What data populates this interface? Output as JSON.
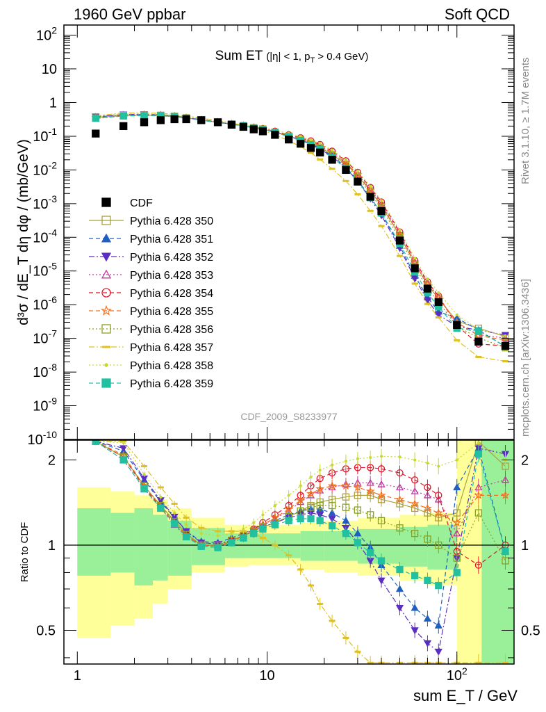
{
  "header": {
    "left": "1960 GeV ppbar",
    "right": "Soft QCD",
    "side_top": "Rivet 3.1.10, ≥ 1.7M events",
    "side_bottom": "mcplots.cern.ch [arXiv:1306.3436]"
  },
  "plot_title": {
    "main": "Sum ET",
    "cut": "(|η| < 1, p",
    "cut_sub": "T",
    "cut_end": " > 0.4 GeV)"
  },
  "analysis_label": "CDF_2009_S8233977",
  "axes": {
    "ylabel_top": "d³σ / dE_T dη dφ / (mb/GeV)",
    "ylabel_ratio": "Ratio to CDF",
    "xlabel": "sum E_T / GeV",
    "x_ticks": [
      "1",
      "10",
      "10²"
    ],
    "y_ticks_top": [
      "10²",
      "10",
      "1",
      "10⁻¹",
      "10⁻²",
      "10⁻³",
      "10⁻⁴",
      "10⁻⁵",
      "10⁻⁶",
      "10⁻⁷",
      "10⁻⁸",
      "10⁻⁹",
      "10⁻¹⁰"
    ],
    "y_ticks_ratio": [
      "2",
      "1",
      "0.5"
    ]
  },
  "legend": [
    {
      "label": "CDF",
      "color": "#000000",
      "marker": "filled-square",
      "line": "none"
    },
    {
      "label": "Pythia 6.428 350",
      "color": "#aaa13b",
      "marker": "open-square",
      "line": "solid"
    },
    {
      "label": "Pythia 6.428 351",
      "color": "#1f5fbf",
      "marker": "filled-triangle-up",
      "line": "dashed"
    },
    {
      "label": "Pythia 6.428 352",
      "color": "#5a2ec0",
      "marker": "filled-triangle-down",
      "line": "dashdot"
    },
    {
      "label": "Pythia 6.428 353",
      "color": "#c03aa0",
      "marker": "open-triangle-up",
      "line": "dotted"
    },
    {
      "label": "Pythia 6.428 354",
      "color": "#e0152a",
      "marker": "open-circle",
      "line": "dashed"
    },
    {
      "label": "Pythia 6.428 355",
      "color": "#f07020",
      "marker": "open-star",
      "line": "dashed"
    },
    {
      "label": "Pythia 6.428 356",
      "color": "#8aa020",
      "marker": "open-square",
      "line": "dotted"
    },
    {
      "label": "Pythia 6.428 357",
      "color": "#e0c020",
      "marker": "dash",
      "line": "dashdot"
    },
    {
      "label": "Pythia 6.428 358",
      "color": "#c8d830",
      "marker": "dot",
      "line": "dotted"
    },
    {
      "label": "Pythia 6.428 359",
      "color": "#20c0a0",
      "marker": "filled-square",
      "line": "dashed"
    }
  ],
  "chart_data": {
    "type": "scatter",
    "xscale": "log",
    "xlim": [
      0.85,
      200
    ],
    "ylim_top": [
      1e-10,
      200
    ],
    "yscale_top": "log",
    "ylim_ratio": [
      0.38,
      2.35
    ],
    "yscale_ratio": "log",
    "data": {
      "name": "CDF",
      "x": [
        1.25,
        1.75,
        2.25,
        2.75,
        3.25,
        3.75,
        4.5,
        5.5,
        6.5,
        7.5,
        8.5,
        9.5,
        11,
        13,
        15,
        17,
        19,
        22,
        26,
        30,
        35,
        40,
        50,
        60,
        70,
        80,
        100,
        130,
        180
      ],
      "y": [
        0.12,
        0.2,
        0.26,
        0.3,
        0.32,
        0.32,
        0.3,
        0.26,
        0.22,
        0.19,
        0.16,
        0.14,
        0.11,
        0.08,
        0.06,
        0.045,
        0.033,
        0.02,
        0.01,
        0.0045,
        0.0016,
        0.0006,
        8e-05,
        1.2e-05,
        3e-06,
        1.2e-06,
        2.5e-07,
        8e-08,
        6e-08
      ]
    },
    "mc_band_1sigma": {
      "x": [
        1,
        1.5,
        2,
        2.5,
        3,
        4,
        6,
        8,
        10,
        15,
        20,
        30,
        50,
        70,
        100
      ],
      "lo": [
        0.78,
        0.8,
        0.72,
        0.75,
        0.78,
        0.85,
        0.9,
        0.9,
        0.9,
        0.88,
        0.88,
        0.86,
        0.84,
        0.82,
        0.8
      ],
      "hi": [
        1.35,
        1.3,
        1.35,
        1.28,
        1.22,
        1.15,
        1.1,
        1.1,
        1.1,
        1.12,
        1.12,
        1.14,
        1.16,
        1.18,
        1.2
      ]
    },
    "mc_band_2sigma": {
      "x": [
        1,
        1.5,
        2,
        2.5,
        3,
        4,
        6,
        8,
        10,
        15,
        20,
        30,
        50,
        70,
        100
      ],
      "lo": [
        0.47,
        0.52,
        0.55,
        0.62,
        0.7,
        0.8,
        0.84,
        0.85,
        0.85,
        0.82,
        0.8,
        0.78,
        0.75,
        0.72,
        0.7
      ],
      "hi": [
        1.6,
        1.55,
        1.5,
        1.45,
        1.35,
        1.25,
        1.18,
        1.18,
        1.18,
        1.2,
        1.22,
        1.25,
        1.28,
        1.3,
        1.35
      ]
    },
    "series": [
      {
        "name": "Pythia 6.428 350",
        "ratio": [
          3.0,
          2.05,
          1.62,
          1.38,
          1.22,
          1.1,
          1.0,
          1.0,
          1.04,
          1.08,
          1.12,
          1.16,
          1.2,
          1.26,
          1.32,
          1.38,
          1.42,
          1.45,
          1.48,
          1.5,
          1.5,
          1.45,
          1.4,
          1.35,
          1.3,
          1.25,
          1.3,
          2.5,
          1.9
        ]
      },
      {
        "name": "Pythia 6.428 351",
        "ratio": [
          3.1,
          2.15,
          1.7,
          1.42,
          1.25,
          1.12,
          1.03,
          1.02,
          1.06,
          1.1,
          1.14,
          1.18,
          1.22,
          1.28,
          1.32,
          1.34,
          1.34,
          1.3,
          1.22,
          1.1,
          0.98,
          0.85,
          0.7,
          0.6,
          0.55,
          0.52,
          1.6,
          2.2,
          0.95
        ]
      },
      {
        "name": "Pythia 6.428 352",
        "ratio": [
          3.2,
          2.2,
          1.72,
          1.44,
          1.26,
          1.12,
          1.02,
          1.01,
          1.04,
          1.08,
          1.12,
          1.16,
          1.2,
          1.25,
          1.28,
          1.3,
          1.28,
          1.24,
          1.15,
          1.02,
          0.88,
          0.75,
          0.6,
          0.5,
          0.45,
          0.42,
          0.9,
          2.2,
          2.1
        ]
      },
      {
        "name": "Pythia 6.428 353",
        "ratio": [
          2.8,
          2.0,
          1.58,
          1.35,
          1.18,
          1.07,
          1.0,
          0.99,
          1.03,
          1.08,
          1.13,
          1.18,
          1.24,
          1.32,
          1.42,
          1.5,
          1.56,
          1.6,
          1.64,
          1.66,
          1.66,
          1.64,
          1.6,
          1.55,
          1.5,
          1.45,
          1.1,
          1.6,
          1.7
        ]
      },
      {
        "name": "Pythia 6.428 354",
        "ratio": [
          2.9,
          2.05,
          1.6,
          1.36,
          1.2,
          1.08,
          1.0,
          0.99,
          1.03,
          1.08,
          1.14,
          1.2,
          1.28,
          1.38,
          1.5,
          1.62,
          1.72,
          1.8,
          1.86,
          1.88,
          1.88,
          1.86,
          1.8,
          1.7,
          1.6,
          1.5,
          0.95,
          0.85,
          1.0
        ]
      },
      {
        "name": "Pythia 6.428 355",
        "ratio": [
          2.95,
          2.08,
          1.62,
          1.37,
          1.2,
          1.08,
          1.0,
          0.99,
          1.03,
          1.08,
          1.13,
          1.18,
          1.25,
          1.34,
          1.44,
          1.52,
          1.58,
          1.62,
          1.62,
          1.6,
          1.55,
          1.5,
          1.45,
          1.4,
          1.35,
          1.3,
          1.2,
          1.5,
          1.5
        ]
      },
      {
        "name": "Pythia 6.428 356",
        "ratio": [
          2.9,
          2.05,
          1.62,
          1.38,
          1.21,
          1.09,
          1.0,
          1.0,
          1.04,
          1.08,
          1.12,
          1.16,
          1.2,
          1.26,
          1.32,
          1.36,
          1.38,
          1.38,
          1.36,
          1.33,
          1.28,
          1.22,
          1.15,
          1.1,
          1.05,
          1.0,
          0.9,
          1.3,
          0.88
        ]
      },
      {
        "name": "Pythia 6.428 357",
        "ratio": [
          3.4,
          2.45,
          1.9,
          1.6,
          1.4,
          1.25,
          1.15,
          1.12,
          1.12,
          1.12,
          1.1,
          1.06,
          1.0,
          0.92,
          0.82,
          0.72,
          0.62,
          0.54,
          0.47,
          0.42,
          0.38,
          0.36,
          0.35,
          0.35,
          0.35,
          0.35,
          0.35,
          0.35,
          0.35
        ]
      },
      {
        "name": "Pythia 6.428 358",
        "ratio": [
          3.3,
          2.3,
          1.78,
          1.48,
          1.3,
          1.18,
          1.1,
          1.08,
          1.1,
          1.14,
          1.2,
          1.28,
          1.38,
          1.5,
          1.62,
          1.74,
          1.84,
          1.92,
          1.98,
          2.02,
          2.04,
          2.06,
          2.05,
          2.0,
          1.95,
          1.9,
          2.0,
          2.3,
          2.0
        ]
      },
      {
        "name": "Pythia 6.428 359",
        "ratio": [
          2.85,
          2.0,
          1.58,
          1.35,
          1.19,
          1.07,
          0.99,
          0.98,
          1.02,
          1.06,
          1.1,
          1.14,
          1.18,
          1.22,
          1.24,
          1.24,
          1.22,
          1.17,
          1.1,
          1.02,
          0.94,
          0.88,
          0.82,
          0.78,
          0.75,
          0.72,
          0.8,
          2.1,
          0.95
        ]
      }
    ]
  }
}
